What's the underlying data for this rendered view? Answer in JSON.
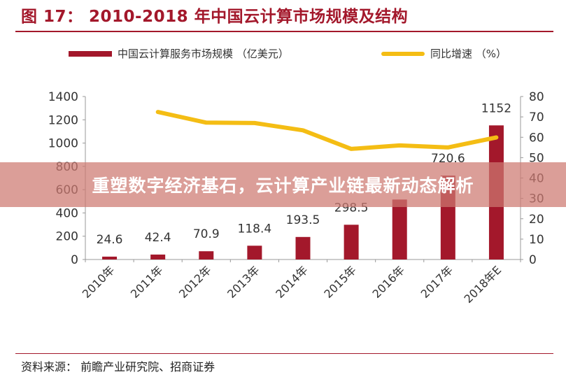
{
  "title": "图 17： 2010-2018 年中国云计算市场规模及结构",
  "banner_text": "重塑数字经济基石，云计算产业链最新动态解析",
  "source_text": "资料来源： 前瞻产业研究院、招商证券",
  "colors": {
    "bar": "#a3182b",
    "line": "#f4bd14",
    "accent": "#a3182b"
  },
  "chart_data": {
    "type": "bar+line",
    "categories": [
      "2010年",
      "2011年",
      "2012年",
      "2013年",
      "2014年",
      "2015年",
      "2016年",
      "2017年",
      "2018年E"
    ],
    "series": [
      {
        "name": "中国云计算服务市场规模 （亿美元）",
        "type": "bar",
        "axis": "left",
        "values": [
          24.6,
          42.4,
          70.9,
          118.4,
          193.5,
          298.5,
          515,
          720.6,
          1152
        ],
        "labels": [
          "24.6",
          "42.4",
          "70.9",
          "118.4",
          "193.5",
          "298.5",
          "",
          "720.6",
          "1152"
        ]
      },
      {
        "name": "同比增速 （%）",
        "type": "line",
        "axis": "right",
        "values": [
          null,
          72.4,
          67.2,
          67.0,
          63.4,
          54.3,
          56.0,
          55.0,
          59.9
        ]
      }
    ],
    "left_axis": {
      "min": 0,
      "max": 1400,
      "ticks": [
        "0",
        "200",
        "400",
        "600",
        "800",
        "1000",
        "1200",
        "1400"
      ]
    },
    "right_axis": {
      "min": 0,
      "max": 80,
      "ticks": [
        "0",
        "10",
        "20",
        "30",
        "40",
        "50",
        "60",
        "70",
        "80"
      ]
    },
    "legend_position": "top"
  }
}
